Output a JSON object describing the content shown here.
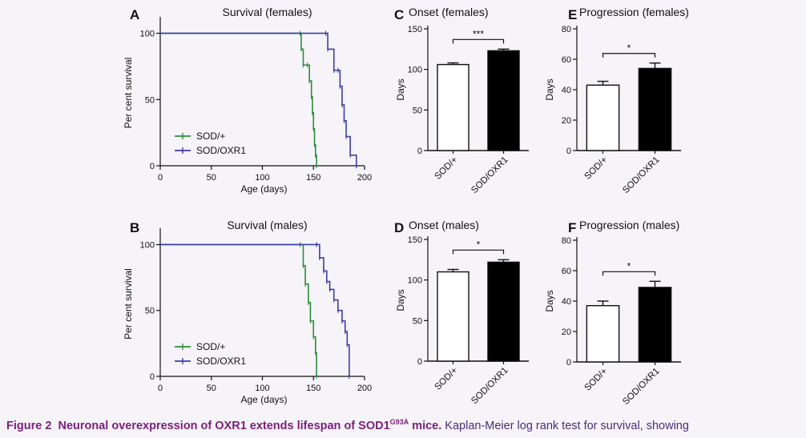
{
  "chart_data": [
    {
      "panel": "A",
      "type": "line",
      "step": true,
      "title": "Survival (females)",
      "xlabel": "Age (days)",
      "ylabel": "Per cent survival",
      "xlim": [
        0,
        200
      ],
      "ylim": [
        0,
        110
      ],
      "xticks": [
        "0",
        "50",
        "100",
        "150",
        "200"
      ],
      "yticks": [
        "0",
        "50",
        "100"
      ],
      "legend": "bottom-left",
      "series": [
        {
          "name": "SOD/+",
          "color": "#2e8b3e",
          "x": [
            0,
            137,
            138,
            140,
            144,
            146,
            148,
            149,
            150,
            151,
            152,
            153
          ],
          "y": [
            100,
            100,
            88,
            76,
            76,
            64,
            52,
            40,
            28,
            16,
            8,
            0
          ]
        },
        {
          "name": "SOD/OXR1",
          "color": "#3c3ea8",
          "x": [
            0,
            162,
            164,
            170,
            174,
            176,
            178,
            180,
            182,
            186,
            192
          ],
          "y": [
            100,
            100,
            88,
            72,
            72,
            60,
            46,
            34,
            22,
            8,
            0
          ]
        }
      ]
    },
    {
      "panel": "B",
      "type": "line",
      "step": true,
      "title": "Survival (males)",
      "xlabel": "Age (days)",
      "ylabel": "Per cent survival",
      "xlim": [
        0,
        200
      ],
      "ylim": [
        0,
        110
      ],
      "xticks": [
        "0",
        "50",
        "100",
        "150",
        "200"
      ],
      "yticks": [
        "0",
        "50",
        "100"
      ],
      "legend": "bottom-left",
      "series": [
        {
          "name": "SOD/+",
          "color": "#2e8b3e",
          "x": [
            0,
            137,
            140,
            142,
            145,
            147,
            150,
            152,
            153
          ],
          "y": [
            100,
            100,
            84,
            70,
            56,
            42,
            30,
            18,
            0
          ]
        },
        {
          "name": "SOD/OXR1",
          "color": "#3c3ea8",
          "x": [
            0,
            153,
            156,
            160,
            163,
            166,
            170,
            174,
            178,
            181,
            183,
            185
          ],
          "y": [
            100,
            100,
            90,
            80,
            72,
            66,
            58,
            50,
            42,
            34,
            24,
            0
          ]
        }
      ]
    },
    {
      "panel": "C",
      "type": "bar",
      "title": "Onset (females)",
      "xlabel": "",
      "ylabel": "Days",
      "ylim": [
        0,
        150
      ],
      "yticks": [
        "0",
        "50",
        "100",
        "150"
      ],
      "categories": [
        "SOD/+",
        "SOD/OXR1"
      ],
      "values": [
        106,
        123
      ],
      "errors": [
        2,
        2
      ],
      "fills": [
        "#ffffff",
        "#000000"
      ],
      "significance": "***"
    },
    {
      "panel": "D",
      "type": "bar",
      "title": "Onset (males)",
      "xlabel": "",
      "ylabel": "Days",
      "ylim": [
        0,
        150
      ],
      "yticks": [
        "0",
        "50",
        "100",
        "150"
      ],
      "categories": [
        "SOD/+",
        "SOD/OXR1"
      ],
      "values": [
        110,
        122
      ],
      "errors": [
        3,
        3
      ],
      "fills": [
        "#ffffff",
        "#000000"
      ],
      "significance": "*"
    },
    {
      "panel": "E",
      "type": "bar",
      "title": "Progression (females)",
      "xlabel": "",
      "ylabel": "Days",
      "ylim": [
        0,
        80
      ],
      "yticks": [
        "0",
        "20",
        "40",
        "60",
        "80"
      ],
      "categories": [
        "SOD/+",
        "SOD/OXR1"
      ],
      "values": [
        43,
        54
      ],
      "errors": [
        2.5,
        3.5
      ],
      "fills": [
        "#ffffff",
        "#000000"
      ],
      "significance": "*"
    },
    {
      "panel": "F",
      "type": "bar",
      "title": "Progression (males)",
      "xlabel": "",
      "ylabel": "Days",
      "ylim": [
        0,
        80
      ],
      "yticks": [
        "0",
        "20",
        "40",
        "60",
        "80"
      ],
      "categories": [
        "SOD/+",
        "SOD/OXR1"
      ],
      "values": [
        37,
        49
      ],
      "errors": [
        3,
        4
      ],
      "fills": [
        "#ffffff",
        "#000000"
      ],
      "significance": "*"
    }
  ],
  "caption": {
    "label": "Figure 2",
    "title_main": "Neuronal overexpression of OXR1 extends lifespan of SOD1",
    "title_sup": "G93A",
    "title_end": " mice.",
    "text": " Kaplan-Meier log rank test for survival, showing"
  }
}
